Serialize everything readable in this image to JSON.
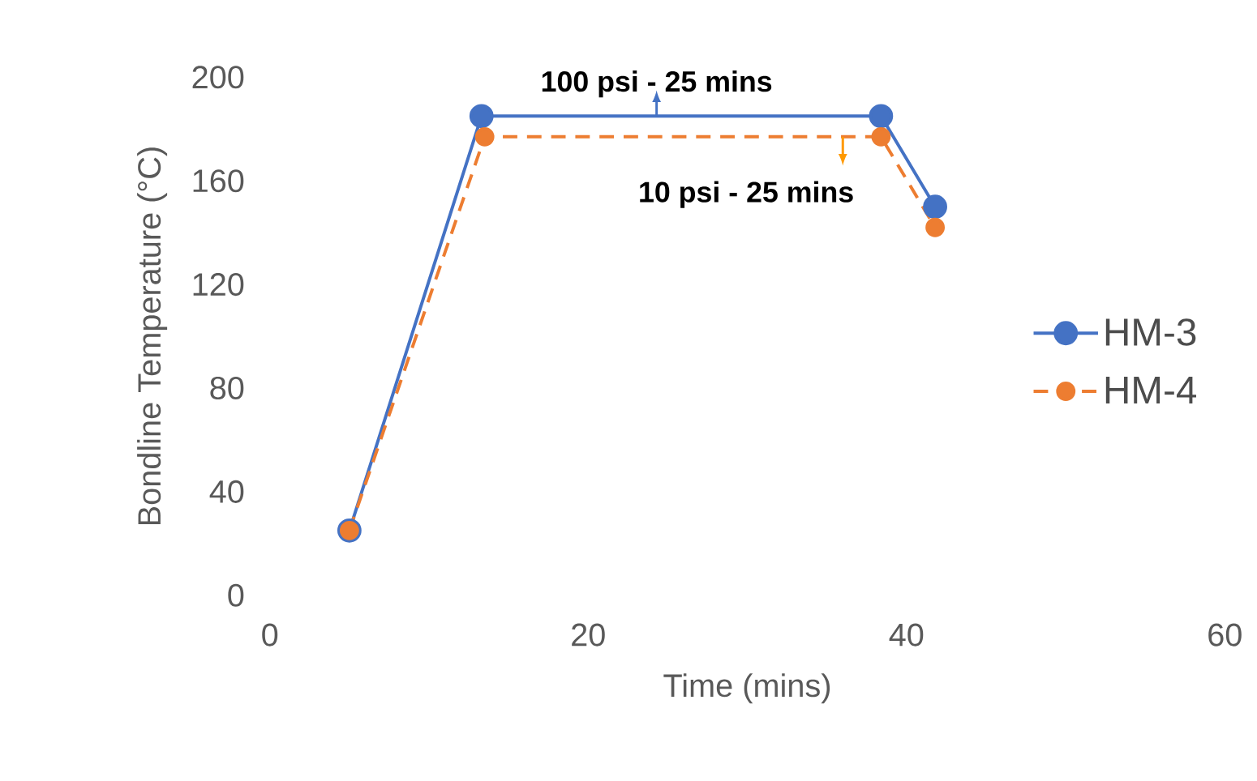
{
  "chart_data": {
    "type": "line",
    "xlabel": "Time (mins)",
    "ylabel": "Bondline Temperature (°C)",
    "xlim": [
      0,
      60
    ],
    "xticks": [
      0,
      20,
      40,
      60
    ],
    "ylim": [
      0,
      200
    ],
    "yticks": [
      0,
      40,
      80,
      120,
      160,
      200
    ],
    "grid": false,
    "legend": "right",
    "marker": "circle",
    "series": [
      {
        "name": "HM-3",
        "color": "#4472c4",
        "line_style": "solid",
        "x": [
          5,
          13.3,
          38.4,
          41.8
        ],
        "values": [
          25,
          185,
          185,
          150
        ]
      },
      {
        "name": "HM-4",
        "color": "#ed7d31",
        "line_style": "dashed",
        "x": [
          5,
          13.5,
          38.4,
          41.8
        ],
        "values": [
          25,
          177,
          177,
          142
        ]
      }
    ],
    "annotations": [
      {
        "text": "100 psi - 25 mins",
        "x": 24.3,
        "y": 185
      },
      {
        "text": "10 psi - 25 mins",
        "x": 36,
        "y": 177
      }
    ]
  }
}
